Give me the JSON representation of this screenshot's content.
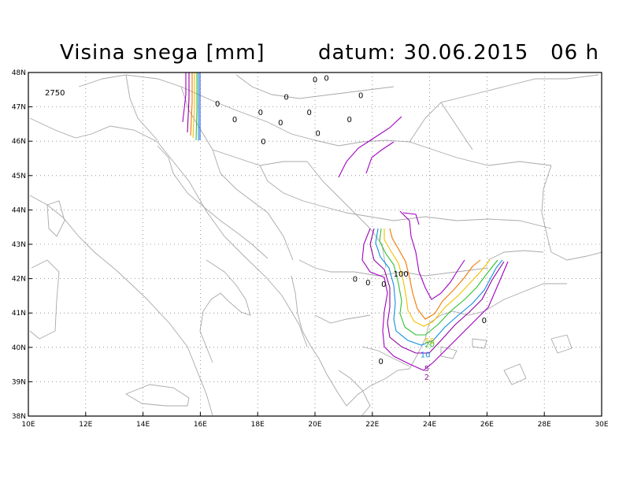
{
  "header": {
    "title": "Visina snega [mm]",
    "date_label": "datum: 30.06.2015   06 h"
  },
  "map": {
    "lon_range": [
      10,
      30
    ],
    "lat_range": [
      38,
      48
    ],
    "x_ticks": [
      "10E",
      "12E",
      "14E",
      "16E",
      "18E",
      "20E",
      "22E",
      "24E",
      "26E",
      "28E",
      "30E"
    ],
    "y_ticks": [
      "38N",
      "39N",
      "40N",
      "41N",
      "42N",
      "43N",
      "44N",
      "45N",
      "46N",
      "47N",
      "48N"
    ],
    "corner_value": "2750",
    "zero_points": [
      {
        "lon": 20.0,
        "lat": 47.8,
        "label": "0"
      },
      {
        "lon": 20.4,
        "lat": 47.85,
        "label": "0"
      },
      {
        "lon": 21.6,
        "lat": 47.35,
        "label": "0"
      },
      {
        "lon": 16.6,
        "lat": 47.1,
        "label": "0"
      },
      {
        "lon": 19.0,
        "lat": 47.3,
        "label": "0"
      },
      {
        "lon": 18.1,
        "lat": 46.85,
        "label": "0"
      },
      {
        "lon": 19.8,
        "lat": 46.85,
        "label": "0"
      },
      {
        "lon": 17.2,
        "lat": 46.65,
        "label": "0"
      },
      {
        "lon": 18.8,
        "lat": 46.55,
        "label": "0"
      },
      {
        "lon": 21.2,
        "lat": 46.65,
        "label": "0"
      },
      {
        "lon": 20.1,
        "lat": 46.25,
        "label": "0"
      },
      {
        "lon": 18.2,
        "lat": 46.0,
        "label": "0"
      },
      {
        "lon": 21.4,
        "lat": 42.0,
        "label": "0"
      },
      {
        "lon": 21.85,
        "lat": 41.9,
        "label": "0"
      },
      {
        "lon": 22.4,
        "lat": 41.85,
        "label": "0"
      },
      {
        "lon": 22.3,
        "lat": 39.6,
        "label": "0"
      },
      {
        "lon": 25.9,
        "lat": 40.8,
        "label": "0"
      }
    ],
    "contour_labels": [
      {
        "lon": 23.0,
        "lat": 42.15,
        "label": "100",
        "color": "#000000"
      },
      {
        "lon": 24.0,
        "lat": 40.2,
        "label": "50",
        "color": "#f0c000"
      },
      {
        "lon": 24.0,
        "lat": 40.1,
        "label": "20",
        "color": "#30c030"
      },
      {
        "lon": 23.85,
        "lat": 39.8,
        "label": "10",
        "color": "#1090e0"
      },
      {
        "lon": 23.9,
        "lat": 39.4,
        "label": "5",
        "color": "#9020a0"
      },
      {
        "lon": 23.9,
        "lat": 39.15,
        "label": "2",
        "color": "#9020a0"
      }
    ],
    "colors": {
      "c2": "#a000c0",
      "c5": "#9000a0",
      "c10": "#1090e0",
      "c20": "#30c030",
      "c50": "#f0c000",
      "c100": "#f07800",
      "c_alps_blue": "#3050f0",
      "boundary": "#a9a9a9",
      "grid": "#808080"
    }
  }
}
